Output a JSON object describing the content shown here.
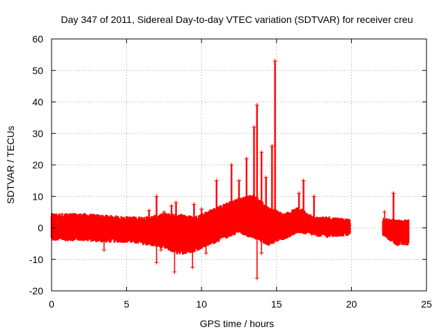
{
  "chart_data": {
    "type": "scatter",
    "title": "Day 347 of 2011, Sidereal Day-to-day VTEC variation (SDTVAR) for receiver creu",
    "xlabel": "GPS time / hours",
    "ylabel": "SDTVAR / TECUs",
    "xlim": [
      0,
      25
    ],
    "ylim": [
      -20,
      60
    ],
    "x_ticks": [
      0,
      5,
      10,
      15,
      20,
      25
    ],
    "y_ticks": [
      -20,
      -10,
      0,
      10,
      20,
      30,
      40,
      50,
      60
    ],
    "grid": true,
    "marker": "+",
    "color": "#ff0000",
    "series": [
      {
        "name": "SDTVAR",
        "band": [
          {
            "x": 0.0,
            "lo": -3.5,
            "hi": 4.0
          },
          {
            "x": 2.0,
            "lo": -3.5,
            "hi": 4.0
          },
          {
            "x": 3.5,
            "lo": -4.0,
            "hi": 3.5
          },
          {
            "x": 5.0,
            "lo": -4.0,
            "hi": 3.0
          },
          {
            "x": 6.5,
            "lo": -5.0,
            "hi": 3.0
          },
          {
            "x": 7.5,
            "lo": -6.0,
            "hi": 4.0
          },
          {
            "x": 8.5,
            "lo": -8.0,
            "hi": 4.0
          },
          {
            "x": 9.5,
            "lo": -7.0,
            "hi": 3.0
          },
          {
            "x": 10.5,
            "lo": -5.0,
            "hi": 5.0
          },
          {
            "x": 11.5,
            "lo": -3.0,
            "hi": 7.0
          },
          {
            "x": 12.5,
            "lo": -1.0,
            "hi": 9.0
          },
          {
            "x": 13.5,
            "lo": -3.0,
            "hi": 10.0
          },
          {
            "x": 14.5,
            "lo": -5.0,
            "hi": 6.0
          },
          {
            "x": 15.5,
            "lo": -3.0,
            "hi": 4.0
          },
          {
            "x": 16.5,
            "lo": -1.0,
            "hi": 6.0
          },
          {
            "x": 17.5,
            "lo": -2.0,
            "hi": 3.0
          },
          {
            "x": 18.5,
            "lo": -2.5,
            "hi": 3.0
          },
          {
            "x": 19.5,
            "lo": -2.0,
            "hi": 2.5
          },
          {
            "x": 19.9,
            "lo": -2.0,
            "hi": 2.0
          }
        ],
        "band2": [
          {
            "x": 22.1,
            "lo": -2.0,
            "hi": 2.5
          },
          {
            "x": 23.0,
            "lo": -5.0,
            "hi": 2.0
          },
          {
            "x": 23.8,
            "lo": -5.0,
            "hi": 2.0
          }
        ],
        "spikes": [
          {
            "x": 6.5,
            "y": 5.5
          },
          {
            "x": 7.0,
            "y": 10.0
          },
          {
            "x": 7.5,
            "y": 5.0
          },
          {
            "x": 8.0,
            "y": 7.0
          },
          {
            "x": 8.3,
            "y": 8.0
          },
          {
            "x": 9.5,
            "y": 7.5
          },
          {
            "x": 10.0,
            "y": 6.0
          },
          {
            "x": 11.0,
            "y": 15.0
          },
          {
            "x": 12.0,
            "y": 20.0
          },
          {
            "x": 12.5,
            "y": 15.0
          },
          {
            "x": 13.0,
            "y": 22.0
          },
          {
            "x": 13.5,
            "y": 32.0
          },
          {
            "x": 13.7,
            "y": 39.0
          },
          {
            "x": 14.0,
            "y": 24.0
          },
          {
            "x": 14.3,
            "y": 16.0
          },
          {
            "x": 14.7,
            "y": 26.0
          },
          {
            "x": 14.9,
            "y": 53.0
          },
          {
            "x": 16.5,
            "y": 11.0
          },
          {
            "x": 16.8,
            "y": 15.0
          },
          {
            "x": 17.5,
            "y": 10.0
          },
          {
            "x": 22.8,
            "y": 11.0
          }
        ],
        "dips": [
          {
            "x": 3.5,
            "y": -7.0
          },
          {
            "x": 7.0,
            "y": -11.0
          },
          {
            "x": 7.3,
            "y": -7.0
          },
          {
            "x": 8.2,
            "y": -14.0
          },
          {
            "x": 9.4,
            "y": -12.5
          },
          {
            "x": 10.3,
            "y": -8.0
          },
          {
            "x": 13.7,
            "y": -16.0
          },
          {
            "x": 14.0,
            "y": -8.0
          },
          {
            "x": 22.2,
            "y": 5.0
          }
        ]
      }
    ]
  }
}
